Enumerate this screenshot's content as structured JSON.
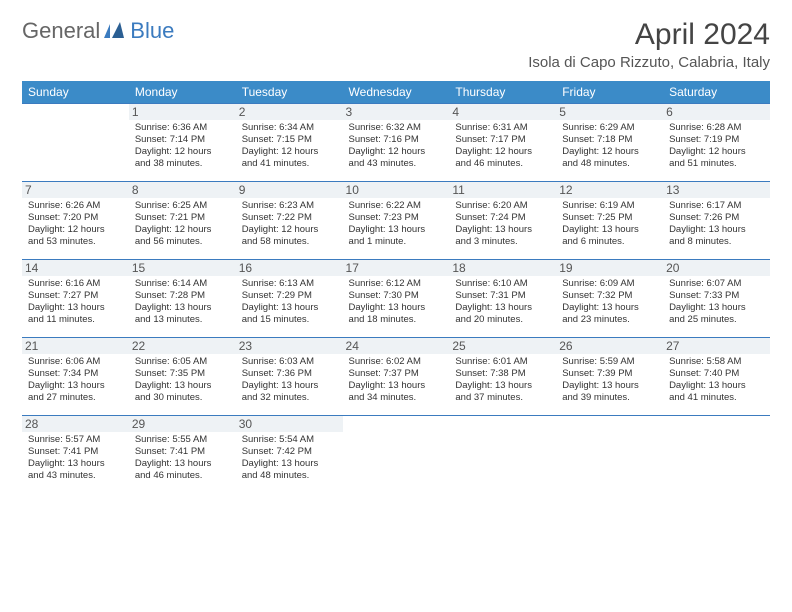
{
  "brand": {
    "part1": "General",
    "part2": "Blue"
  },
  "header": {
    "title": "April 2024",
    "location": "Isola di Capo Rizzuto, Calabria, Italy"
  },
  "colors": {
    "header_bg": "#3b8bc8",
    "header_text": "#ffffff",
    "border": "#3b7bbf",
    "daynum_bg": "#eef2f5",
    "text": "#333333"
  },
  "weekdays": [
    "Sunday",
    "Monday",
    "Tuesday",
    "Wednesday",
    "Thursday",
    "Friday",
    "Saturday"
  ],
  "weeks": [
    [
      {
        "n": "",
        "sr": "",
        "ss": "",
        "dl1": "",
        "dl2": ""
      },
      {
        "n": "1",
        "sr": "Sunrise: 6:36 AM",
        "ss": "Sunset: 7:14 PM",
        "dl1": "Daylight: 12 hours",
        "dl2": "and 38 minutes."
      },
      {
        "n": "2",
        "sr": "Sunrise: 6:34 AM",
        "ss": "Sunset: 7:15 PM",
        "dl1": "Daylight: 12 hours",
        "dl2": "and 41 minutes."
      },
      {
        "n": "3",
        "sr": "Sunrise: 6:32 AM",
        "ss": "Sunset: 7:16 PM",
        "dl1": "Daylight: 12 hours",
        "dl2": "and 43 minutes."
      },
      {
        "n": "4",
        "sr": "Sunrise: 6:31 AM",
        "ss": "Sunset: 7:17 PM",
        "dl1": "Daylight: 12 hours",
        "dl2": "and 46 minutes."
      },
      {
        "n": "5",
        "sr": "Sunrise: 6:29 AM",
        "ss": "Sunset: 7:18 PM",
        "dl1": "Daylight: 12 hours",
        "dl2": "and 48 minutes."
      },
      {
        "n": "6",
        "sr": "Sunrise: 6:28 AM",
        "ss": "Sunset: 7:19 PM",
        "dl1": "Daylight: 12 hours",
        "dl2": "and 51 minutes."
      }
    ],
    [
      {
        "n": "7",
        "sr": "Sunrise: 6:26 AM",
        "ss": "Sunset: 7:20 PM",
        "dl1": "Daylight: 12 hours",
        "dl2": "and 53 minutes."
      },
      {
        "n": "8",
        "sr": "Sunrise: 6:25 AM",
        "ss": "Sunset: 7:21 PM",
        "dl1": "Daylight: 12 hours",
        "dl2": "and 56 minutes."
      },
      {
        "n": "9",
        "sr": "Sunrise: 6:23 AM",
        "ss": "Sunset: 7:22 PM",
        "dl1": "Daylight: 12 hours",
        "dl2": "and 58 minutes."
      },
      {
        "n": "10",
        "sr": "Sunrise: 6:22 AM",
        "ss": "Sunset: 7:23 PM",
        "dl1": "Daylight: 13 hours",
        "dl2": "and 1 minute."
      },
      {
        "n": "11",
        "sr": "Sunrise: 6:20 AM",
        "ss": "Sunset: 7:24 PM",
        "dl1": "Daylight: 13 hours",
        "dl2": "and 3 minutes."
      },
      {
        "n": "12",
        "sr": "Sunrise: 6:19 AM",
        "ss": "Sunset: 7:25 PM",
        "dl1": "Daylight: 13 hours",
        "dl2": "and 6 minutes."
      },
      {
        "n": "13",
        "sr": "Sunrise: 6:17 AM",
        "ss": "Sunset: 7:26 PM",
        "dl1": "Daylight: 13 hours",
        "dl2": "and 8 minutes."
      }
    ],
    [
      {
        "n": "14",
        "sr": "Sunrise: 6:16 AM",
        "ss": "Sunset: 7:27 PM",
        "dl1": "Daylight: 13 hours",
        "dl2": "and 11 minutes."
      },
      {
        "n": "15",
        "sr": "Sunrise: 6:14 AM",
        "ss": "Sunset: 7:28 PM",
        "dl1": "Daylight: 13 hours",
        "dl2": "and 13 minutes."
      },
      {
        "n": "16",
        "sr": "Sunrise: 6:13 AM",
        "ss": "Sunset: 7:29 PM",
        "dl1": "Daylight: 13 hours",
        "dl2": "and 15 minutes."
      },
      {
        "n": "17",
        "sr": "Sunrise: 6:12 AM",
        "ss": "Sunset: 7:30 PM",
        "dl1": "Daylight: 13 hours",
        "dl2": "and 18 minutes."
      },
      {
        "n": "18",
        "sr": "Sunrise: 6:10 AM",
        "ss": "Sunset: 7:31 PM",
        "dl1": "Daylight: 13 hours",
        "dl2": "and 20 minutes."
      },
      {
        "n": "19",
        "sr": "Sunrise: 6:09 AM",
        "ss": "Sunset: 7:32 PM",
        "dl1": "Daylight: 13 hours",
        "dl2": "and 23 minutes."
      },
      {
        "n": "20",
        "sr": "Sunrise: 6:07 AM",
        "ss": "Sunset: 7:33 PM",
        "dl1": "Daylight: 13 hours",
        "dl2": "and 25 minutes."
      }
    ],
    [
      {
        "n": "21",
        "sr": "Sunrise: 6:06 AM",
        "ss": "Sunset: 7:34 PM",
        "dl1": "Daylight: 13 hours",
        "dl2": "and 27 minutes."
      },
      {
        "n": "22",
        "sr": "Sunrise: 6:05 AM",
        "ss": "Sunset: 7:35 PM",
        "dl1": "Daylight: 13 hours",
        "dl2": "and 30 minutes."
      },
      {
        "n": "23",
        "sr": "Sunrise: 6:03 AM",
        "ss": "Sunset: 7:36 PM",
        "dl1": "Daylight: 13 hours",
        "dl2": "and 32 minutes."
      },
      {
        "n": "24",
        "sr": "Sunrise: 6:02 AM",
        "ss": "Sunset: 7:37 PM",
        "dl1": "Daylight: 13 hours",
        "dl2": "and 34 minutes."
      },
      {
        "n": "25",
        "sr": "Sunrise: 6:01 AM",
        "ss": "Sunset: 7:38 PM",
        "dl1": "Daylight: 13 hours",
        "dl2": "and 37 minutes."
      },
      {
        "n": "26",
        "sr": "Sunrise: 5:59 AM",
        "ss": "Sunset: 7:39 PM",
        "dl1": "Daylight: 13 hours",
        "dl2": "and 39 minutes."
      },
      {
        "n": "27",
        "sr": "Sunrise: 5:58 AM",
        "ss": "Sunset: 7:40 PM",
        "dl1": "Daylight: 13 hours",
        "dl2": "and 41 minutes."
      }
    ],
    [
      {
        "n": "28",
        "sr": "Sunrise: 5:57 AM",
        "ss": "Sunset: 7:41 PM",
        "dl1": "Daylight: 13 hours",
        "dl2": "and 43 minutes."
      },
      {
        "n": "29",
        "sr": "Sunrise: 5:55 AM",
        "ss": "Sunset: 7:41 PM",
        "dl1": "Daylight: 13 hours",
        "dl2": "and 46 minutes."
      },
      {
        "n": "30",
        "sr": "Sunrise: 5:54 AM",
        "ss": "Sunset: 7:42 PM",
        "dl1": "Daylight: 13 hours",
        "dl2": "and 48 minutes."
      },
      {
        "n": "",
        "sr": "",
        "ss": "",
        "dl1": "",
        "dl2": ""
      },
      {
        "n": "",
        "sr": "",
        "ss": "",
        "dl1": "",
        "dl2": ""
      },
      {
        "n": "",
        "sr": "",
        "ss": "",
        "dl1": "",
        "dl2": ""
      },
      {
        "n": "",
        "sr": "",
        "ss": "",
        "dl1": "",
        "dl2": ""
      }
    ]
  ]
}
